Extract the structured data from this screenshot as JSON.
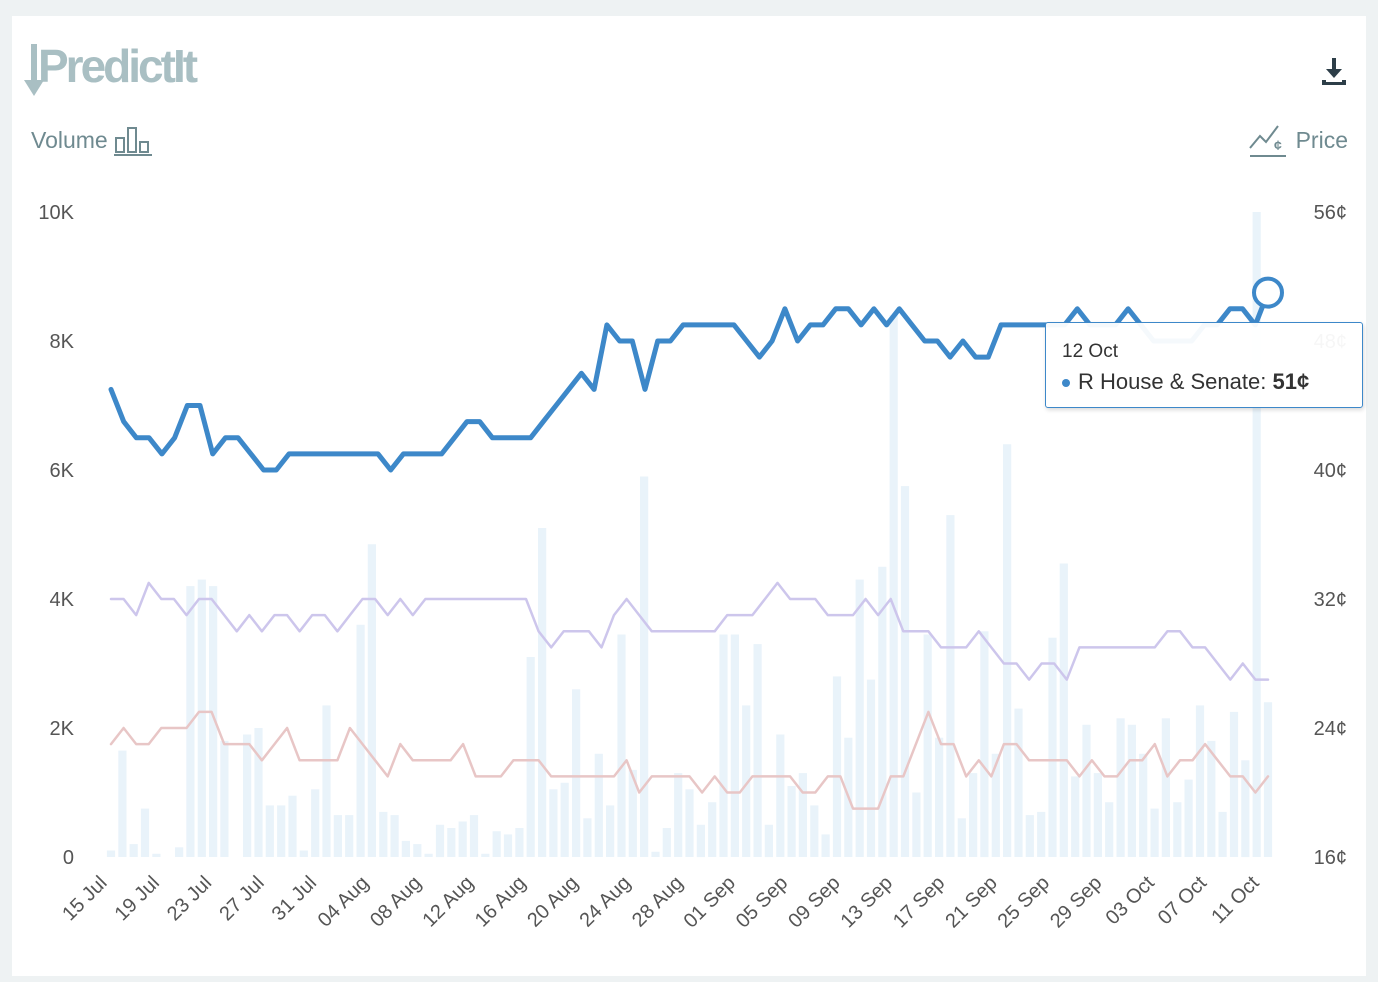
{
  "brand": {
    "name": "PredictIt"
  },
  "toolbar": {
    "download_icon": "download-icon"
  },
  "axes": {
    "left_label": "Volume",
    "left_icon": "bar-chart-icon",
    "right_label": "Price",
    "right_icon": "price-line-icon"
  },
  "colors": {
    "primary": "#3d88c9",
    "secondary": "#cdc6ec",
    "tertiary": "#e8c6c6",
    "volume": "#e9f3fa"
  },
  "tooltip": {
    "date": "12 Oct",
    "series": "R House & Senate:",
    "value": "51¢"
  },
  "chart_data": {
    "type": "line",
    "x_start": "15 Jul",
    "x_end": "12 Oct",
    "xticks": [
      "15 Jul",
      "19 Jul",
      "23 Jul",
      "27 Jul",
      "31 Jul",
      "04 Aug",
      "08 Aug",
      "12 Aug",
      "16 Aug",
      "20 Aug",
      "24 Aug",
      "28 Aug",
      "01 Sep",
      "05 Sep",
      "09 Sep",
      "13 Sep",
      "17 Sep",
      "21 Sep",
      "25 Sep",
      "29 Sep",
      "03 Oct",
      "07 Oct",
      "11 Oct"
    ],
    "yticks_left": [
      "0",
      "2K",
      "4K",
      "6K",
      "8K",
      "10K"
    ],
    "yticks_right": [
      "16¢",
      "24¢",
      "32¢",
      "40¢",
      "48¢",
      "56¢"
    ],
    "ylim_left": [
      0,
      10000
    ],
    "ylim_right": [
      16,
      56
    ],
    "series": [
      {
        "name": "R House & Senate",
        "axis": "right",
        "values": [
          45,
          43,
          42,
          42,
          41,
          42,
          44,
          44,
          41,
          42,
          42,
          41,
          40,
          40,
          41,
          41,
          41,
          41,
          41,
          41,
          41,
          41,
          40,
          41,
          41,
          41,
          41,
          42,
          43,
          43,
          42,
          42,
          42,
          42,
          43,
          44,
          45,
          46,
          45,
          49,
          48,
          48,
          45,
          48,
          48,
          49,
          49,
          49,
          49,
          49,
          48,
          47,
          48,
          50,
          48,
          49,
          49,
          50,
          50,
          49,
          50,
          49,
          50,
          49,
          48,
          48,
          47,
          48,
          47,
          47,
          49,
          49,
          49,
          49,
          49,
          49,
          50,
          49,
          49,
          49,
          50,
          49,
          48,
          48,
          48,
          48,
          49,
          49,
          50,
          50,
          49,
          51
        ]
      },
      {
        "axis": "right",
        "values": [
          32,
          32,
          31,
          33,
          32,
          32,
          31,
          32,
          32,
          31,
          30,
          31,
          30,
          31,
          31,
          30,
          31,
          31,
          30,
          31,
          32,
          32,
          31,
          32,
          31,
          32,
          32,
          32,
          32,
          32,
          32,
          32,
          32,
          32,
          30,
          29,
          30,
          30,
          30,
          29,
          31,
          32,
          31,
          30,
          30,
          30,
          30,
          30,
          30,
          31,
          31,
          31,
          32,
          33,
          32,
          32,
          32,
          31,
          31,
          31,
          32,
          31,
          32,
          30,
          30,
          30,
          29,
          29,
          29,
          30,
          29,
          28,
          28,
          27,
          28,
          28,
          27,
          29,
          29,
          29,
          29,
          29,
          29,
          29,
          30,
          30,
          29,
          29,
          28,
          27,
          28,
          27,
          27
        ]
      },
      {
        "axis": "right",
        "values": [
          23,
          24,
          23,
          23,
          24,
          24,
          24,
          25,
          25,
          23,
          23,
          23,
          22,
          23,
          24,
          22,
          22,
          22,
          22,
          24,
          23,
          22,
          21,
          23,
          22,
          22,
          22,
          22,
          23,
          21,
          21,
          21,
          22,
          22,
          22,
          21,
          21,
          21,
          21,
          21,
          21,
          22,
          20,
          21,
          21,
          21,
          21,
          20,
          21,
          20,
          20,
          21,
          21,
          21,
          21,
          20,
          20,
          21,
          21,
          19,
          19,
          19,
          21,
          21,
          23,
          25,
          23,
          23,
          21,
          22,
          21,
          23,
          23,
          22,
          22,
          22,
          22,
          21,
          22,
          21,
          21,
          22,
          22,
          23,
          21,
          22,
          22,
          23,
          22,
          21,
          21,
          20,
          21
        ]
      }
    ],
    "volume": [
      100,
      1650,
      200,
      750,
      50,
      0,
      150,
      4200,
      4300,
      4200,
      1800,
      0,
      1900,
      2000,
      800,
      800,
      950,
      100,
      1050,
      2350,
      650,
      650,
      3600,
      4850,
      700,
      650,
      250,
      200,
      50,
      500,
      450,
      550,
      650,
      50,
      400,
      350,
      450,
      3100,
      5100,
      1050,
      1150,
      2600,
      600,
      1600,
      800,
      3450,
      1350,
      5900,
      80,
      450,
      1300,
      1050,
      500,
      850,
      3450,
      3450,
      2350,
      3300,
      500,
      1900,
      1100,
      1300,
      800,
      350,
      2800,
      1850,
      4300,
      2750,
      4500,
      8400,
      5750,
      1000,
      3450,
      1850,
      5300,
      600,
      1300,
      3500,
      1600,
      6400,
      2300,
      650,
      700,
      3400,
      4550,
      1250,
      2050,
      1300,
      850,
      2150,
      2050,
      1600,
      750,
      2150,
      850,
      1200,
      2350,
      1800,
      700,
      2250,
      1500,
      10000,
      2400
    ]
  }
}
